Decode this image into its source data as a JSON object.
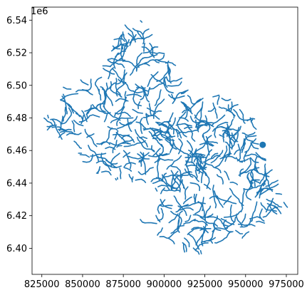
{
  "chart_data": {
    "type": "map",
    "offset_text": "1e6",
    "x_ticks": [
      {
        "value": 825000,
        "label": "825000"
      },
      {
        "value": 850000,
        "label": "850000"
      },
      {
        "value": 875000,
        "label": "875000"
      },
      {
        "value": 900000,
        "label": "900000"
      },
      {
        "value": 925000,
        "label": "925000"
      },
      {
        "value": 950000,
        "label": "950000"
      },
      {
        "value": 975000,
        "label": "975000"
      }
    ],
    "y_ticks": [
      {
        "value": 6400000,
        "label": "6.40"
      },
      {
        "value": 6420000,
        "label": "6.42"
      },
      {
        "value": 6440000,
        "label": "6.44"
      },
      {
        "value": 6460000,
        "label": "6.46"
      },
      {
        "value": 6480000,
        "label": "6.48"
      },
      {
        "value": 6500000,
        "label": "6.50"
      },
      {
        "value": 6520000,
        "label": "6.52"
      },
      {
        "value": 6540000,
        "label": "6.54"
      }
    ],
    "xlim": [
      819000,
      982000
    ],
    "ylim": [
      6384000,
      6548000
    ],
    "line_color": "#1f77b4",
    "river_network_outline": [
      [
        826000,
        6480000
      ],
      [
        835000,
        6490000
      ],
      [
        840000,
        6504000
      ],
      [
        858000,
        6505000
      ],
      [
        866000,
        6518000
      ],
      [
        870000,
        6532000
      ],
      [
        880000,
        6542000
      ],
      [
        888000,
        6540000
      ],
      [
        894000,
        6530000
      ],
      [
        900000,
        6520000
      ],
      [
        908000,
        6513000
      ],
      [
        914000,
        6500000
      ],
      [
        925000,
        6492000
      ],
      [
        933000,
        6495000
      ],
      [
        945000,
        6490000
      ],
      [
        955000,
        6483000
      ],
      [
        958000,
        6470000
      ],
      [
        960000,
        6460000
      ],
      [
        965000,
        6450000
      ],
      [
        972000,
        6440000
      ],
      [
        974000,
        6428000
      ],
      [
        978000,
        6422000
      ],
      [
        965000,
        6420000
      ],
      [
        958000,
        6410000
      ],
      [
        945000,
        6405000
      ],
      [
        930000,
        6402000
      ],
      [
        918000,
        6392000
      ],
      [
        910000,
        6400000
      ],
      [
        900000,
        6405000
      ],
      [
        890000,
        6410000
      ],
      [
        880000,
        6412000
      ],
      [
        878000,
        6418000
      ],
      [
        895000,
        6422000
      ],
      [
        898000,
        6433000
      ],
      [
        885000,
        6440000
      ],
      [
        873000,
        6441000
      ],
      [
        863000,
        6443000
      ],
      [
        853000,
        6448000
      ],
      [
        848000,
        6456000
      ],
      [
        843000,
        6465000
      ],
      [
        833000,
        6467000
      ],
      [
        826000,
        6475000
      ]
    ],
    "point_marker": {
      "x": 960500,
      "y": 6463500
    }
  }
}
